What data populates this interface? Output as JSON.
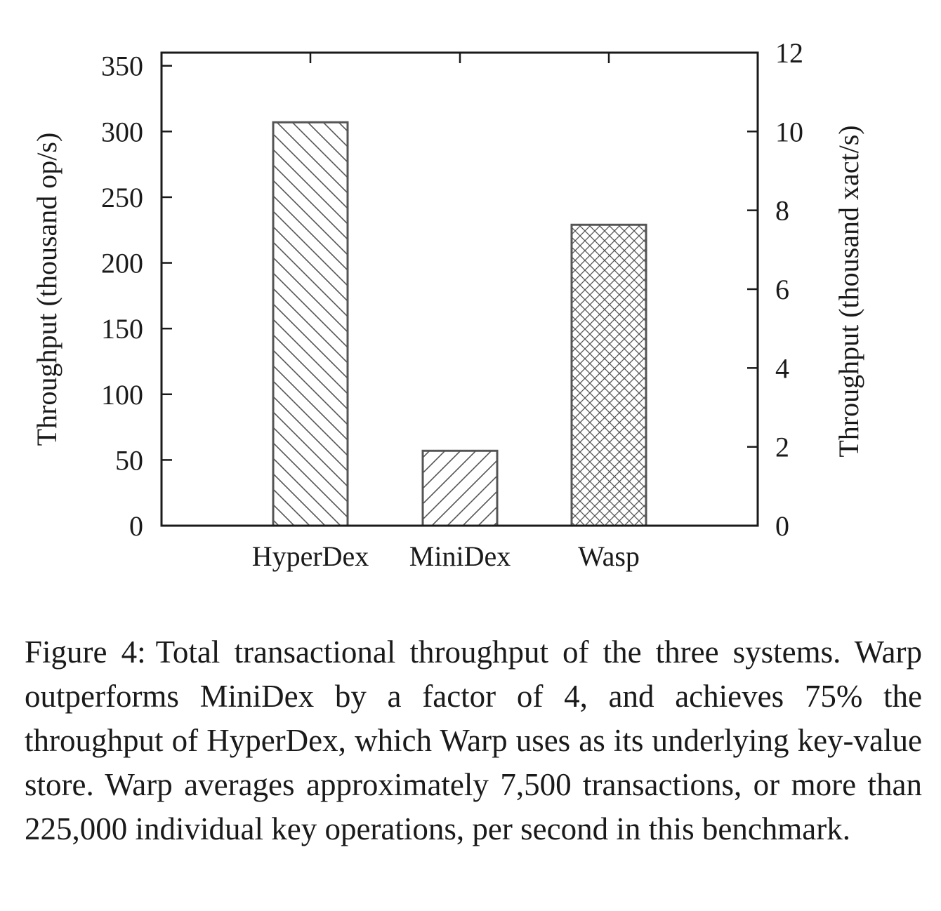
{
  "chart_data": {
    "type": "bar",
    "categories": [
      "HyperDex",
      "MiniDex",
      "Wasp"
    ],
    "values": [
      307,
      57,
      229
    ],
    "ylabel": "Throughput (thousand op/s)",
    "ylim": [
      0,
      360
    ],
    "yticks": [
      "0",
      "50",
      "100",
      "150",
      "200",
      "250",
      "300",
      "350"
    ],
    "y2label": "Throughput (thousand xact/s)",
    "y2lim": [
      0,
      12
    ],
    "y2ticks": [
      "0",
      "2",
      "4",
      "6",
      "8",
      "10",
      "12"
    ],
    "patterns": [
      "diagonal-back",
      "diagonal-forward",
      "crosshatch"
    ],
    "grid": false,
    "legend": "none",
    "colors": {
      "bar_stroke": "#555555",
      "axis": "#1a1a1a"
    }
  },
  "caption": {
    "label": "Figure 4:",
    "text": "Total transactional throughput of the three systems. Warp outperforms MiniDex by a factor of 4, and achieves 75% the throughput of HyperDex, which Warp uses as its underlying key-value store. Warp averages approximately 7,500 transactions, or more than 225,000 individual key operations, per second in this benchmark."
  }
}
